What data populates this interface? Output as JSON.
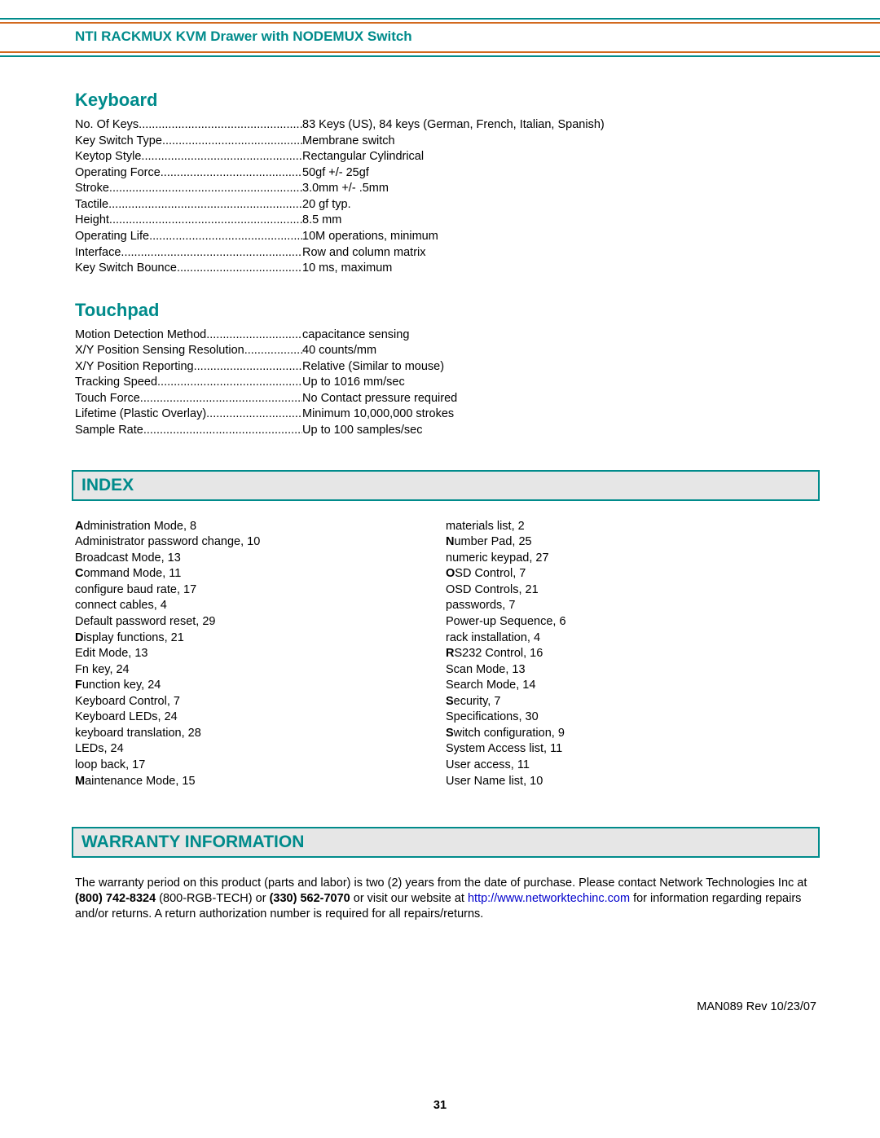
{
  "header": {
    "title": "NTI RACKMUX KVM Drawer with NODEMUX Switch"
  },
  "keyboard": {
    "title": "Keyboard",
    "specs": [
      {
        "label": "No. Of Keys",
        "value": "83 Keys (US), 84 keys (German, French, Italian, Spanish)"
      },
      {
        "label": "Key Switch Type",
        "value": "Membrane switch"
      },
      {
        "label": "Keytop Style",
        "value": "Rectangular Cylindrical"
      },
      {
        "label": "Operating Force",
        "value": "50gf +/- 25gf"
      },
      {
        "label": "Stroke",
        "value": "3.0mm +/- .5mm"
      },
      {
        "label": "Tactile",
        "value": "20 gf typ."
      },
      {
        "label": "Height",
        "value": "8.5 mm"
      },
      {
        "label": "Operating Life",
        "value": "10M operations, minimum"
      },
      {
        "label": "Interface",
        "value": "Row and column matrix"
      },
      {
        "label": "Key Switch Bounce",
        "value": "10 ms, maximum"
      }
    ]
  },
  "touchpad": {
    "title": "Touchpad",
    "specs": [
      {
        "label": "Motion Detection Method",
        "value": "capacitance sensing"
      },
      {
        "label": "X/Y Position Sensing Resolution",
        "value": "40 counts/mm"
      },
      {
        "label": "X/Y Position Reporting",
        "value": "Relative (Similar to mouse)"
      },
      {
        "label": "Tracking Speed",
        "value": "Up to 1016 mm/sec"
      },
      {
        "label": "Touch Force",
        "value": "No Contact pressure required"
      },
      {
        "label": "Lifetime (Plastic Overlay)",
        "value": "Minimum 10,000,000 strokes"
      },
      {
        "label": "Sample Rate",
        "value": "Up to 100 samples/sec"
      }
    ]
  },
  "index": {
    "title": "INDEX",
    "left": [
      {
        "bold": "A",
        "text": "dministration Mode, 8"
      },
      {
        "bold": "",
        "text": "Administrator password change, 10"
      },
      {
        "bold": "",
        "text": "Broadcast Mode, 13"
      },
      {
        "bold": "C",
        "text": "ommand Mode, 11"
      },
      {
        "bold": "",
        "text": "configure baud rate, 17"
      },
      {
        "bold": "",
        "text": "connect cables, 4"
      },
      {
        "bold": "",
        "text": "Default password reset, 29"
      },
      {
        "bold": "D",
        "text": "isplay functions, 21"
      },
      {
        "bold": "",
        "text": "Edit Mode, 13"
      },
      {
        "bold": "",
        "text": "Fn key, 24"
      },
      {
        "bold": "F",
        "text": "unction key, 24"
      },
      {
        "bold": "",
        "text": "Keyboard Control, 7"
      },
      {
        "bold": "",
        "text": "Keyboard LEDs, 24"
      },
      {
        "bold": "",
        "text": "keyboard translation, 28"
      },
      {
        "bold": "",
        "text": "LEDs, 24"
      },
      {
        "bold": "",
        "text": "loop back, 17"
      },
      {
        "bold": "M",
        "text": "aintenance Mode, 15"
      }
    ],
    "right": [
      {
        "bold": "",
        "text": "materials list, 2"
      },
      {
        "bold": "N",
        "text": "umber Pad, 25"
      },
      {
        "bold": "",
        "text": "numeric keypad, 27"
      },
      {
        "bold": "O",
        "text": "SD Control, 7"
      },
      {
        "bold": "",
        "text": "OSD Controls, 21"
      },
      {
        "bold": "",
        "text": "passwords, 7"
      },
      {
        "bold": "",
        "text": "Power-up Sequence, 6"
      },
      {
        "bold": "",
        "text": "rack installation, 4"
      },
      {
        "bold": "R",
        "text": "S232 Control, 16"
      },
      {
        "bold": "",
        "text": "Scan Mode, 13"
      },
      {
        "bold": "",
        "text": "Search Mode, 14"
      },
      {
        "bold": "S",
        "text": "ecurity, 7"
      },
      {
        "bold": "",
        "text": "Specifications, 30"
      },
      {
        "bold": "S",
        "text": "witch configuration, 9"
      },
      {
        "bold": "",
        "text": "System Access list, 11"
      },
      {
        "bold": "",
        "text": "User access, 11"
      },
      {
        "bold": "",
        "text": "User Name list, 10"
      }
    ]
  },
  "warranty": {
    "title": "WARRANTY INFORMATION",
    "text1": "The warranty period on this product (parts and labor) is two (2) years from the date of purchase.  Please contact Network Technologies Inc at ",
    "phone1": "(800) 742-8324",
    "text2": "  (800-RGB-TECH) or ",
    "phone2": "(330) 562-7070",
    "text3": " or visit our website at ",
    "url": "http://www.networktechinc.com",
    "text4": " for information regarding repairs and/or returns.  A return authorization number is required for all repairs/returns."
  },
  "footer": {
    "docrev": "MAN089    Rev 10/23/07",
    "page": "31"
  }
}
